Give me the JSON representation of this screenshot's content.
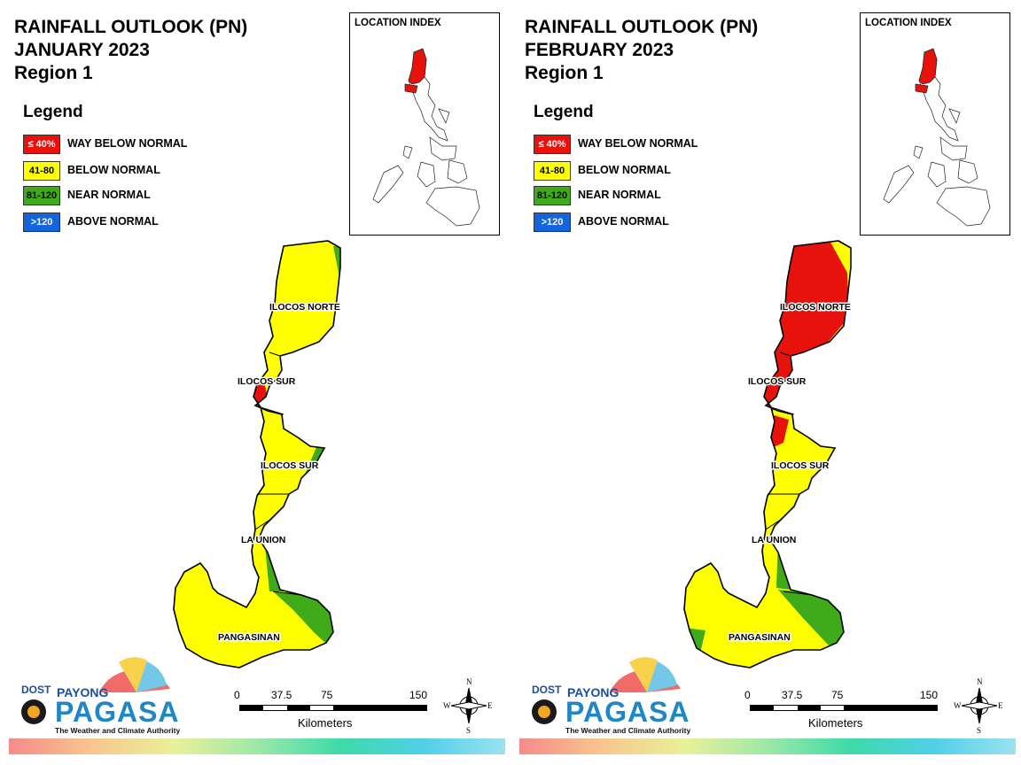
{
  "panels": [
    {
      "id": "left",
      "title": [
        "RAINFALL OUTLOOK (PN)",
        "JANUARY 2023",
        "Region 1"
      ],
      "legend": {
        "title": "Legend",
        "items": [
          {
            "swatch": "≤ 40%",
            "label": "WAY BELOW NORMAL",
            "color": "#e8120c",
            "text_color": "#ffffff"
          },
          {
            "swatch": "41-80",
            "label": "BELOW NORMAL",
            "color": "#ffff00",
            "text_color": "#000000"
          },
          {
            "swatch": "81-120",
            "label": "NEAR NORMAL",
            "color": "#3faa1a",
            "text_color": "#000000"
          },
          {
            "swatch": ">120",
            "label": "ABOVE NORMAL",
            "color": "#1464dc",
            "text_color": "#ffffff"
          }
        ]
      },
      "inset_label": "LOCATION INDEX",
      "provinces": [
        "ILOCOS NORTE",
        "ILOCOS SUR",
        "ILOCOS SUR",
        "LA UNION",
        "PANGASINAN"
      ],
      "month_key": "january"
    },
    {
      "id": "right",
      "title": [
        "RAINFALL OUTLOOK (PN)",
        "FEBRUARY 2023",
        "Region 1"
      ],
      "legend": {
        "title": "Legend",
        "items": [
          {
            "swatch": "≤ 40%",
            "label": "WAY BELOW NORMAL",
            "color": "#e8120c",
            "text_color": "#ffffff"
          },
          {
            "swatch": "41-80",
            "label": "BELOW NORMAL",
            "color": "#ffff00",
            "text_color": "#000000"
          },
          {
            "swatch": "81-120",
            "label": "NEAR NORMAL",
            "color": "#3faa1a",
            "text_color": "#000000"
          },
          {
            "swatch": ">120",
            "label": "ABOVE NORMAL",
            "color": "#1464dc",
            "text_color": "#ffffff"
          }
        ]
      },
      "inset_label": "LOCATION INDEX",
      "provinces": [
        "ILOCOS NORTE",
        "ILOCOS SUR",
        "ILOCOS SUR",
        "LA UNION",
        "PANGASINAN"
      ],
      "month_key": "february"
    }
  ],
  "scale": {
    "ticks": [
      "0",
      "37.5",
      "75",
      "150"
    ],
    "unit": "Kilometers"
  },
  "compass": {
    "n": "N",
    "s": "S",
    "e": "E",
    "w": "W"
  },
  "logo": {
    "dost": "DOST",
    "payong": "PAYONG",
    "pagasa": "PAGASA",
    "tagline": "The Weather and Climate Authority"
  },
  "colors": {
    "way_below": "#e8120c",
    "below": "#ffff00",
    "near": "#3faa1a",
    "above": "#1464dc"
  }
}
